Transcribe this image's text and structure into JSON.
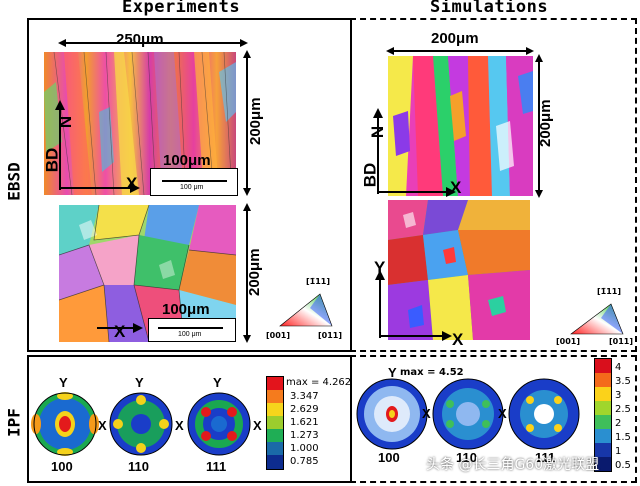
{
  "columns": {
    "experiments": "Experiments",
    "simulations": "Simulations"
  },
  "rows": {
    "ebsd": "EBSD",
    "ipf": "IPF"
  },
  "exp_ebsd": {
    "width_dim": "250μm",
    "height_dim_top": "200μm",
    "height_dim_bottom": "200μm",
    "scale_top": "100μm",
    "scale_top_small": "100 μm",
    "scale_bottom": "100μm",
    "scale_bottom_small": "100 μm",
    "axis_bd": "BD",
    "axis_n": "N",
    "axis_x": "X",
    "axis_x2": "X"
  },
  "sim_ebsd": {
    "width_dim": "200μm",
    "height_dim": "200μm",
    "axis_bd": "BD",
    "axis_n": "N",
    "axis_x": "X",
    "axis_y": "Y",
    "axis_x2": "X"
  },
  "ipf_triangle": {
    "exp": {
      "top": "[1̄11]",
      "left": "[001]",
      "right": "[011]"
    },
    "sim": {
      "top": "[1̄11]",
      "left": "[001]",
      "right": "[011]"
    }
  },
  "exp_ipf": {
    "poles": [
      "100",
      "110",
      "111"
    ],
    "y": "Y",
    "x": "X",
    "colorbar": [
      "max = 4.262",
      "3.347",
      "2.629",
      "1.621",
      "1.273",
      "1.000",
      "0.785"
    ],
    "colors": [
      "#e3141c",
      "#f57b1d",
      "#f6d51c",
      "#9ccd2d",
      "#1fae55",
      "#1a6aa8",
      "#0d2c8f"
    ]
  },
  "sim_ipf": {
    "poles": [
      "100",
      "110",
      "111"
    ],
    "y": "Y",
    "x": "X",
    "max_label": "max = 4.52",
    "colorbar": [
      "4",
      "3.5",
      "3",
      "2.5",
      "2",
      "1.5",
      "1",
      "0.5"
    ],
    "colors": [
      "#d90f1c",
      "#f46a1b",
      "#fbd21a",
      "#a0d62c",
      "#3fbf5a",
      "#2a8fd0",
      "#1736a8",
      "#0a1a6e"
    ]
  },
  "watermark": "头条 @长三角G60激光联盟"
}
